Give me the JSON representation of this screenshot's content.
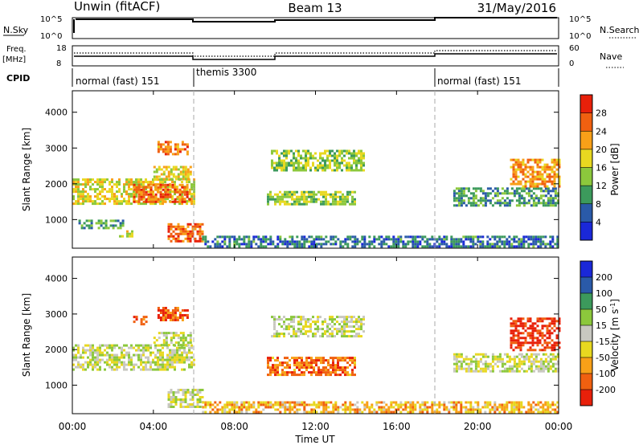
{
  "header": {
    "station": "Unwin (fitACF)",
    "beam": "Beam 13",
    "date": "31/May/2016"
  },
  "nsky_panel": {
    "left_label": "N.Sky",
    "right_label": "N.Search",
    "ticks": [
      "10^5",
      "10^0"
    ],
    "right_ticks": [
      "10^5",
      "10^0"
    ]
  },
  "freq_panel": {
    "left_label_line1": "Freq.",
    "left_label_line2": "[MHz]",
    "left_ticks": [
      "18",
      "8"
    ],
    "right_label": "Nave",
    "right_ticks": [
      "60",
      "0"
    ]
  },
  "cpid": {
    "label": "CPID",
    "segments": [
      {
        "text": "normal (fast) 151",
        "start_hour": 0
      },
      {
        "text": "themis 3300",
        "start_hour": 6
      },
      {
        "text": "normal (fast) 151",
        "start_hour": 18
      }
    ]
  },
  "axis_common": {
    "x_ticks": [
      "00:00",
      "04:00",
      "08:00",
      "12:00",
      "16:00",
      "20:00",
      "00:00"
    ],
    "xlabel": "Time UT",
    "y_ticks": [
      "1000",
      "2000",
      "3000",
      "4000"
    ]
  },
  "chart_data": [
    {
      "type": "heatmap",
      "panel": "power",
      "ylabel": "Slant Range [km]",
      "colorbar_label": "Power [dB]",
      "colorbar_ticks": [
        "28",
        "24",
        "20",
        "16",
        "12",
        "8",
        "4"
      ],
      "colorbar_colors": [
        "#e8200a",
        "#f06010",
        "#f8a018",
        "#e8d820",
        "#8cc83c",
        "#3c9a5c",
        "#2a5aa8",
        "#1a28d8"
      ],
      "xlim_hours": [
        0,
        24
      ],
      "ylim_km": [
        200,
        4600
      ],
      "blobs": [
        {
          "t0": 0.0,
          "t1": 6.0,
          "r0": 1450,
          "r1": 2150,
          "level": 0.55
        },
        {
          "t0": 3.0,
          "t1": 5.8,
          "r0": 1500,
          "r1": 2000,
          "level": 0.85
        },
        {
          "t0": 4.0,
          "t1": 5.9,
          "r0": 2100,
          "r1": 2500,
          "level": 0.6
        },
        {
          "t0": 4.2,
          "t1": 5.7,
          "r0": 2850,
          "r1": 3200,
          "level": 0.8
        },
        {
          "t0": 0.3,
          "t1": 2.5,
          "r0": 750,
          "r1": 1000,
          "level": 0.3
        },
        {
          "t0": 2.3,
          "t1": 3.0,
          "r0": 500,
          "r1": 700,
          "level": 0.55
        },
        {
          "t0": 4.7,
          "t1": 6.4,
          "r0": 400,
          "r1": 900,
          "level": 0.85
        },
        {
          "t0": 9.8,
          "t1": 14.4,
          "r0": 2400,
          "r1": 2950,
          "level": 0.45
        },
        {
          "t0": 9.6,
          "t1": 14.0,
          "r0": 1450,
          "r1": 1800,
          "level": 0.45
        },
        {
          "t0": 18.8,
          "t1": 24.0,
          "r0": 1400,
          "r1": 1900,
          "level": 0.3
        },
        {
          "t0": 21.6,
          "t1": 24.0,
          "r0": 1950,
          "r1": 2700,
          "level": 0.75
        },
        {
          "t0": 6.4,
          "t1": 24.0,
          "r0": 250,
          "r1": 550,
          "level": 0.2
        }
      ]
    },
    {
      "type": "heatmap",
      "panel": "velocity",
      "ylabel": "Slant Range [km]",
      "colorbar_label": "Velocity [m s^-1]",
      "colorbar_ticks": [
        "200",
        "100",
        "50",
        "15",
        "-15",
        "-50",
        "-100",
        "-200"
      ],
      "colorbar_colors": [
        "#1a28d8",
        "#2a5aa8",
        "#3c9a5c",
        "#8cc83c",
        "#c8c8c0",
        "#e8d820",
        "#f8a018",
        "#f06010",
        "#e8200a"
      ],
      "xlim_hours": [
        0,
        24
      ],
      "ylim_km": [
        200,
        4600
      ],
      "blobs": [
        {
          "t0": 0.0,
          "t1": 6.0,
          "r0": 1450,
          "r1": 2150,
          "level": 0.5
        },
        {
          "t0": 4.0,
          "t1": 5.9,
          "r0": 2100,
          "r1": 2500,
          "level": 0.5
        },
        {
          "t0": 4.2,
          "t1": 5.7,
          "r0": 2850,
          "r1": 3200,
          "level": 0.9
        },
        {
          "t0": 3.0,
          "t1": 3.6,
          "r0": 2700,
          "r1": 2950,
          "level": 0.95
        },
        {
          "t0": 4.7,
          "t1": 6.4,
          "r0": 400,
          "r1": 900,
          "level": 0.5
        },
        {
          "t0": 9.8,
          "t1": 14.4,
          "r0": 2400,
          "r1": 2950,
          "level": 0.5
        },
        {
          "t0": 9.6,
          "t1": 14.0,
          "r0": 1300,
          "r1": 1800,
          "level": 0.85
        },
        {
          "t0": 18.8,
          "t1": 24.0,
          "r0": 1400,
          "r1": 1900,
          "level": 0.5
        },
        {
          "t0": 21.6,
          "t1": 24.0,
          "r0": 2000,
          "r1": 2900,
          "level": 1.0
        },
        {
          "t0": 6.4,
          "t1": 24.0,
          "r0": 250,
          "r1": 550,
          "level": 0.7
        }
      ]
    }
  ]
}
